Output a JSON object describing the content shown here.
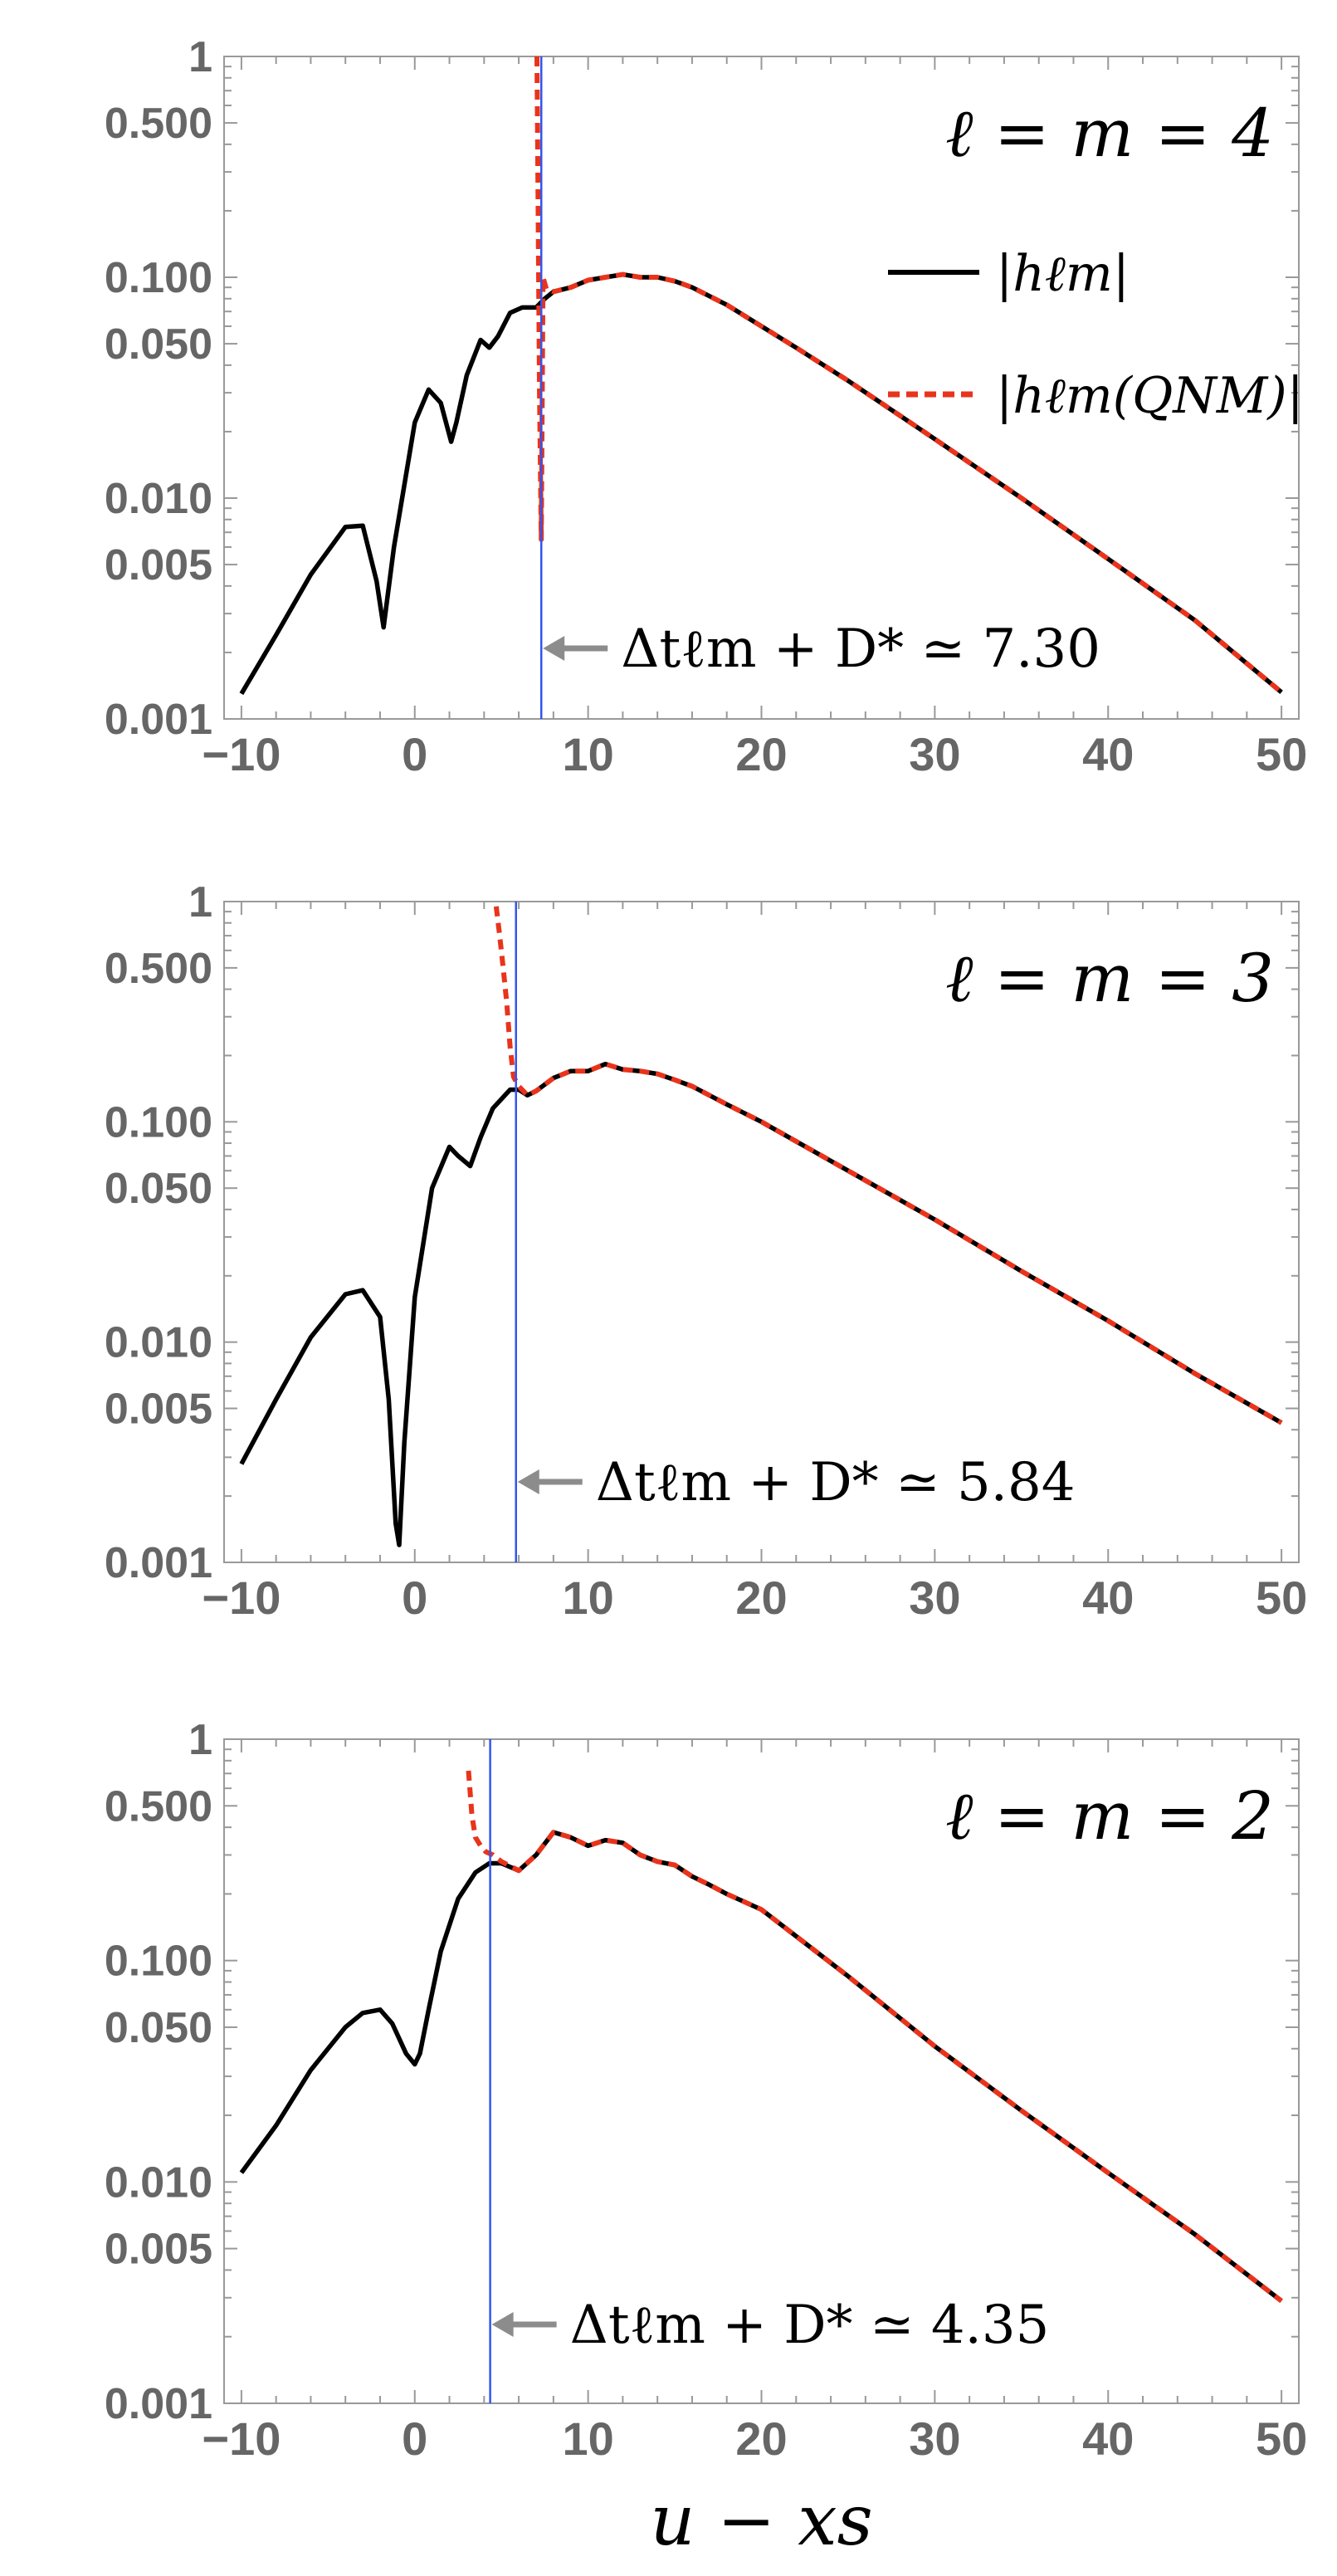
{
  "chart_data": [
    {
      "type": "line",
      "title": "ℓ = m = 4",
      "yscale": "log",
      "ylim": [
        0.001,
        1
      ],
      "xlim": [
        -11,
        51
      ],
      "yticks": [
        "1",
        "0.500",
        "0.100",
        "0.050",
        "0.010",
        "0.005",
        "0.001"
      ],
      "xticks": [
        "−10",
        "0",
        "10",
        "20",
        "30",
        "40",
        "50"
      ],
      "marker_x": 7.3,
      "annotation": "Δtℓm + D* ≃ 7.30",
      "legend": {
        "placement": "top-right",
        "entries": [
          "|hℓm|",
          "|hℓm(QNM)|"
        ]
      },
      "colors": {
        "full": "#000000",
        "qnm": "#e8341c",
        "marker": "#3355ee"
      },
      "series": [
        {
          "name": "|hℓm|",
          "style": "solid",
          "x": [
            -10,
            -8,
            -6,
            -4,
            -3,
            -2.2,
            -1.8,
            -1.2,
            0,
            0.8,
            1.5,
            2.1,
            2.4,
            3,
            3.8,
            4.3,
            4.8,
            5.5,
            6.2,
            7,
            7.5,
            8,
            9,
            10,
            11,
            12,
            13,
            14,
            15,
            16,
            18,
            20,
            22,
            25,
            30,
            35,
            40,
            45,
            50
          ],
          "y": [
            0.0013,
            0.0024,
            0.0045,
            0.0074,
            0.0075,
            0.0042,
            0.0026,
            0.006,
            0.022,
            0.031,
            0.027,
            0.018,
            0.022,
            0.036,
            0.052,
            0.048,
            0.054,
            0.069,
            0.073,
            0.073,
            0.08,
            0.086,
            0.09,
            0.097,
            0.1,
            0.103,
            0.1,
            0.1,
            0.096,
            0.09,
            0.075,
            0.06,
            0.048,
            0.034,
            0.0185,
            0.01,
            0.0053,
            0.0028,
            0.00132
          ]
        },
        {
          "name": "|hℓm(QNM)|",
          "style": "dashed",
          "x": [
            7.05,
            7.1,
            7.2,
            7.3,
            7.4,
            7.6,
            8,
            9,
            10,
            11,
            12,
            13,
            14,
            15,
            16,
            18,
            20,
            22,
            25,
            30,
            35,
            40,
            45,
            50
          ],
          "y": [
            1,
            0.3,
            0.03,
            0.0065,
            0.1,
            0.088,
            0.086,
            0.09,
            0.097,
            0.1,
            0.103,
            0.1,
            0.1,
            0.096,
            0.09,
            0.075,
            0.06,
            0.048,
            0.034,
            0.0185,
            0.01,
            0.0053,
            0.0028,
            0.00132
          ]
        }
      ]
    },
    {
      "type": "line",
      "title": "ℓ = m = 3",
      "yscale": "log",
      "ylim": [
        0.001,
        1
      ],
      "xlim": [
        -11,
        51
      ],
      "yticks": [
        "1",
        "0.500",
        "0.100",
        "0.050",
        "0.010",
        "0.005",
        "0.001"
      ],
      "xticks": [
        "−10",
        "0",
        "10",
        "20",
        "30",
        "40",
        "50"
      ],
      "marker_x": 5.84,
      "annotation": "Δtℓm + D* ≃ 5.84",
      "colors": {
        "full": "#000000",
        "qnm": "#e8341c",
        "marker": "#3355ee"
      },
      "series": [
        {
          "name": "|hℓm|",
          "style": "solid",
          "x": [
            -10,
            -8,
            -6,
            -4,
            -3,
            -2,
            -1.5,
            -1.1,
            -0.9,
            -0.6,
            0,
            1,
            2,
            2.5,
            3.2,
            3.8,
            4.5,
            5.5,
            6,
            6.5,
            7,
            8,
            9,
            10,
            11,
            12,
            13,
            14,
            15,
            16,
            18,
            20,
            25,
            30,
            35,
            40,
            45,
            50
          ],
          "y": [
            0.0028,
            0.0055,
            0.0105,
            0.0165,
            0.0172,
            0.013,
            0.0055,
            0.0015,
            0.0012,
            0.0035,
            0.016,
            0.05,
            0.077,
            0.07,
            0.063,
            0.085,
            0.115,
            0.14,
            0.14,
            0.132,
            0.138,
            0.158,
            0.17,
            0.17,
            0.183,
            0.173,
            0.17,
            0.165,
            0.155,
            0.145,
            0.12,
            0.1,
            0.06,
            0.036,
            0.021,
            0.0125,
            0.0072,
            0.0043
          ]
        },
        {
          "name": "|hℓm(QNM)|",
          "style": "dashed",
          "x": [
            4.7,
            4.9,
            5.1,
            5.3,
            5.5,
            5.7,
            6,
            6.5,
            7,
            8,
            9,
            10,
            11,
            12,
            13,
            14,
            15,
            16,
            18,
            20,
            25,
            30,
            35,
            40,
            45,
            50
          ],
          "y": [
            0.95,
            0.7,
            0.5,
            0.35,
            0.22,
            0.16,
            0.145,
            0.132,
            0.138,
            0.158,
            0.17,
            0.17,
            0.183,
            0.173,
            0.17,
            0.165,
            0.155,
            0.145,
            0.12,
            0.1,
            0.06,
            0.036,
            0.021,
            0.0125,
            0.0072,
            0.0043
          ]
        }
      ]
    },
    {
      "type": "line",
      "title": "ℓ = m = 2",
      "yscale": "log",
      "ylim": [
        0.001,
        1
      ],
      "xlim": [
        -11,
        51
      ],
      "yticks": [
        "1",
        "0.500",
        "0.100",
        "0.050",
        "0.010",
        "0.005",
        "0.001"
      ],
      "xticks": [
        "−10",
        "0",
        "10",
        "20",
        "30",
        "40",
        "50"
      ],
      "xlabel": "u − xs",
      "marker_x": 4.35,
      "annotation": "Δtℓm + D* ≃ 4.35",
      "colors": {
        "full": "#000000",
        "qnm": "#e8341c",
        "marker": "#3355ee"
      },
      "series": [
        {
          "name": "|hℓm|",
          "style": "solid",
          "x": [
            -10,
            -8,
            -6,
            -4,
            -3,
            -2,
            -1.3,
            -0.5,
            0,
            0.3,
            0.8,
            1.5,
            2.5,
            3.5,
            4.3,
            5,
            6,
            7,
            8,
            9,
            10,
            11,
            12,
            13,
            14,
            15,
            16,
            17,
            18,
            20,
            25,
            30,
            35,
            40,
            45,
            50
          ],
          "y": [
            0.011,
            0.018,
            0.032,
            0.05,
            0.058,
            0.06,
            0.052,
            0.038,
            0.034,
            0.038,
            0.06,
            0.11,
            0.19,
            0.25,
            0.275,
            0.275,
            0.255,
            0.3,
            0.38,
            0.36,
            0.33,
            0.35,
            0.34,
            0.3,
            0.28,
            0.27,
            0.24,
            0.22,
            0.2,
            0.17,
            0.085,
            0.041,
            0.021,
            0.011,
            0.0058,
            0.0029
          ]
        },
        {
          "name": "|hℓm(QNM)|",
          "style": "dashed",
          "x": [
            3.1,
            3.3,
            3.5,
            3.8,
            4.1,
            4.5,
            5,
            6,
            7,
            8,
            9,
            10,
            11,
            12,
            13,
            14,
            15,
            16,
            17,
            18,
            20,
            25,
            30,
            35,
            40,
            45,
            50
          ],
          "y": [
            0.72,
            0.45,
            0.36,
            0.33,
            0.31,
            0.3,
            0.28,
            0.255,
            0.3,
            0.38,
            0.36,
            0.33,
            0.35,
            0.34,
            0.3,
            0.28,
            0.27,
            0.24,
            0.22,
            0.2,
            0.17,
            0.085,
            0.041,
            0.021,
            0.011,
            0.0058,
            0.0029
          ]
        }
      ]
    }
  ]
}
